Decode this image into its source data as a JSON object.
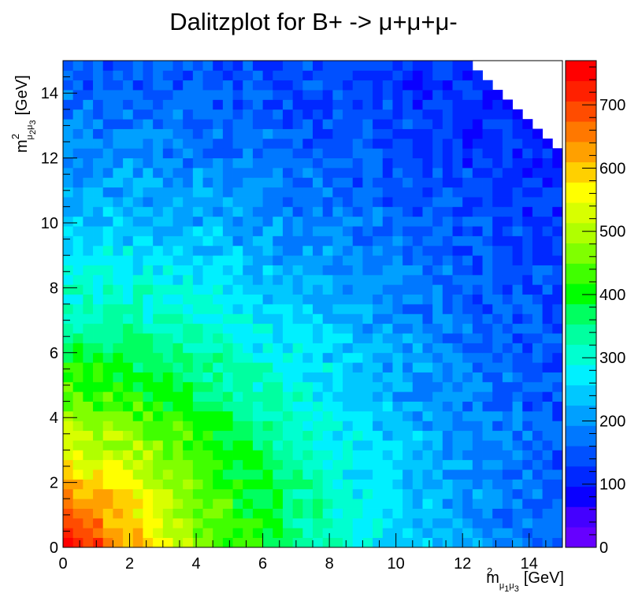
{
  "chart_data": {
    "type": "heatmap",
    "title": "Dalitzplot for B+ -> μ+μ+μ-",
    "xlabel": {
      "base": "m",
      "sup": "2",
      "sub1": "μ",
      "sub1s": "1",
      "sub2": "μ",
      "sub2s": "3",
      "unit": "[GeV]"
    },
    "ylabel": {
      "base": "m",
      "sup": "2",
      "sub1": "μ",
      "sub1s": "2",
      "sub2": "μ",
      "sub2s": "3",
      "unit": "[GeV]"
    },
    "xlim": [
      0,
      15
    ],
    "ylim": [
      0,
      15
    ],
    "bins": {
      "nx": 50,
      "ny": 50
    },
    "x_ticks": [
      "0",
      "2",
      "4",
      "6",
      "8",
      "10",
      "12",
      "14"
    ],
    "y_ticks": [
      "0",
      "2",
      "4",
      "6",
      "8",
      "10",
      "12",
      "14"
    ],
    "z_range": [
      0,
      770
    ],
    "z_ticks": [
      "0",
      "100",
      "200",
      "300",
      "400",
      "500",
      "600",
      "700"
    ],
    "z_tick_values": [
      0,
      100,
      200,
      300,
      400,
      500,
      600,
      700
    ],
    "density_model": {
      "description": "approximate counts per bin: highest near origin (~760), decreasing toward upper-right (~40); empty region above x+y ~ 27 kinematic limit",
      "peak": 760,
      "floor": 40,
      "empty_threshold_sum": 27.2
    },
    "palette": [
      "#6600ff",
      "#4400ff",
      "#0a00ff",
      "#0028ff",
      "#0050ff",
      "#0078ff",
      "#00a0ff",
      "#00c8ff",
      "#00f0ff",
      "#00ffd0",
      "#00ffa0",
      "#00ff60",
      "#00ff00",
      "#40ff00",
      "#80ff00",
      "#b0ff00",
      "#d8ff00",
      "#ffff00",
      "#ffd000",
      "#ffa000",
      "#ff7800",
      "#ff4c00",
      "#ff2000",
      "#ff0000"
    ]
  }
}
